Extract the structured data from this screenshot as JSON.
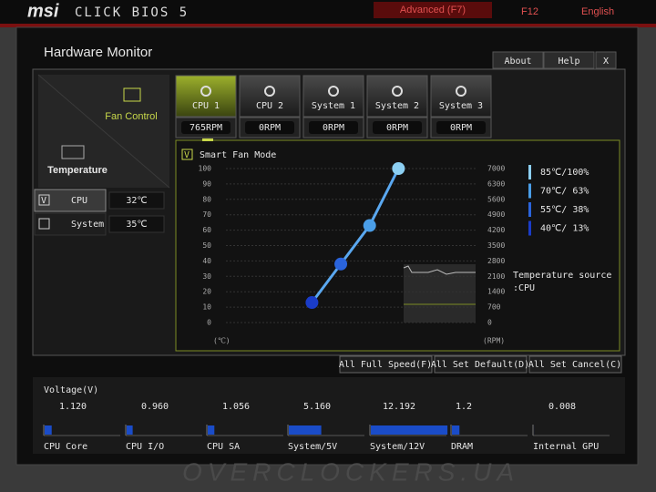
{
  "header": {
    "brand": "msi",
    "product": "CLICK BIOS 5",
    "mode": "Advanced (F7)",
    "screenshot_key": "F12",
    "language": "English"
  },
  "window": {
    "title": "Hardware Monitor",
    "buttons": [
      "About",
      "Help",
      "X"
    ]
  },
  "nav": [
    "Fan Control",
    "Temperature"
  ],
  "sensors": [
    {
      "name": "CPU",
      "value": "32℃",
      "checked": true
    },
    {
      "name": "System",
      "value": "35℃",
      "checked": false
    }
  ],
  "fans": [
    {
      "name": "CPU 1",
      "speed": "765RPM"
    },
    {
      "name": "CPU 2",
      "speed": "0RPM"
    },
    {
      "name": "System 1",
      "speed": "0RPM"
    },
    {
      "name": "System 2",
      "speed": "0RPM"
    },
    {
      "name": "System 3",
      "speed": "0RPM"
    }
  ],
  "fan_curve": {
    "mode_label": "Smart Fan Mode",
    "ylim": [
      0,
      100
    ],
    "yticks": [
      0,
      10,
      20,
      30,
      40,
      50,
      60,
      70,
      80,
      90,
      100
    ],
    "y2lim": [
      0,
      7000
    ],
    "y2ticks": [
      0,
      700,
      1400,
      2100,
      2800,
      3500,
      4200,
      4900,
      5600,
      6300,
      7000
    ],
    "x_unit": "(℃)",
    "y2_unit": "(RPM)",
    "points": [
      {
        "temp": 40,
        "percent": 13,
        "label": "40℃/ 13%",
        "color": "#1a3cc8"
      },
      {
        "temp": 55,
        "percent": 38,
        "label": "55℃/ 38%",
        "color": "#2a64dc"
      },
      {
        "temp": 70,
        "percent": 63,
        "label": "70℃/ 63%",
        "color": "#4a9ee8"
      },
      {
        "temp": 85,
        "percent": 100,
        "label": "85℃/100%",
        "color": "#8ccff2"
      }
    ],
    "source_label": "Temperature source",
    "source": ":CPU"
  },
  "actions": [
    "All Full Speed(F)",
    "All Set Default(D)",
    "All Set Cancel(C)"
  ],
  "voltage": {
    "title": "Voltage(V)",
    "items": [
      {
        "name": "CPU Core",
        "value": 1.12,
        "value_label": "1.120"
      },
      {
        "name": "CPU I/O",
        "value": 0.96,
        "value_label": "0.960"
      },
      {
        "name": "CPU SA",
        "value": 1.056
      },
      {
        "name": "System/5V",
        "value": 5.16,
        "value_label": "5.160"
      },
      {
        "name": "System/12V",
        "value": 12.192
      },
      {
        "name": "DRAM",
        "value": 1.2
      },
      {
        "name": "Internal GPU",
        "value": 0.008
      }
    ]
  },
  "watermark": "OVERCLOCKERS.UA"
}
